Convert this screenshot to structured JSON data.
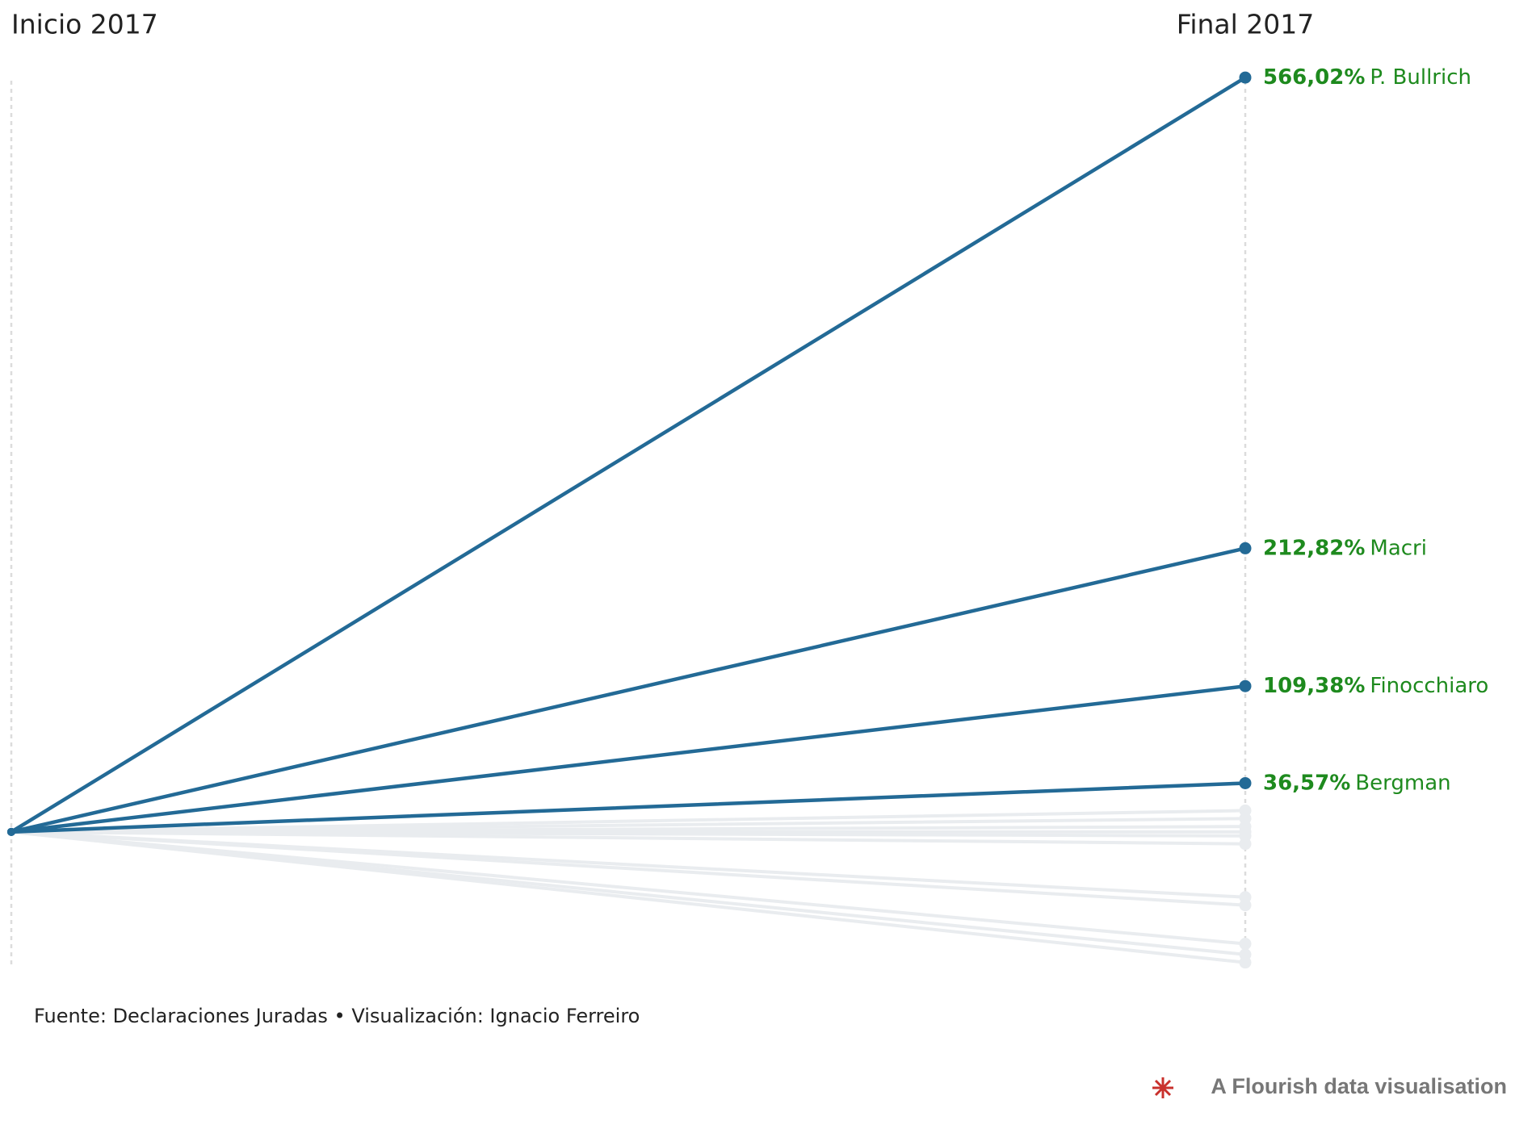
{
  "chart_data": {
    "type": "slope",
    "categories": [
      "Inicio 2017",
      "Final 2017"
    ],
    "ylim": [
      -120,
      600
    ],
    "label_color": "#1e8a1e",
    "series": [
      {
        "color": "#e9ecef",
        "values": [
          0,
          -98
        ]
      },
      {
        "color": "#e9ecef",
        "values": [
          0,
          -92
        ]
      },
      {
        "color": "#e9ecef",
        "values": [
          0,
          -84
        ]
      },
      {
        "color": "#e9ecef",
        "values": [
          0,
          -55
        ]
      },
      {
        "color": "#e9ecef",
        "values": [
          0,
          -49
        ]
      },
      {
        "color": "#e9ecef",
        "values": [
          0,
          -9
        ]
      },
      {
        "color": "#e9ecef",
        "values": [
          0,
          -3
        ]
      },
      {
        "color": "#e9ecef",
        "values": [
          0,
          0
        ]
      },
      {
        "color": "#e9ecef",
        "values": [
          0,
          4
        ]
      },
      {
        "color": "#e9ecef",
        "values": [
          0,
          10
        ]
      },
      {
        "color": "#e9ecef",
        "values": [
          0,
          16
        ]
      },
      {
        "name": "Bergman",
        "color": "#236a96",
        "values": [
          0,
          36.57
        ],
        "value_labels": [
          null,
          "36,57%"
        ]
      },
      {
        "name": "Finocchiaro",
        "color": "#236a96",
        "values": [
          0,
          109.38
        ],
        "value_labels": [
          null,
          "109,38%"
        ]
      },
      {
        "name": "Macri",
        "color": "#236a96",
        "values": [
          0,
          212.82
        ],
        "value_labels": [
          null,
          "212,82%"
        ]
      },
      {
        "name": "P. Bullrich",
        "color": "#236a96",
        "values": [
          0,
          566.02
        ],
        "value_labels": [
          null,
          "566,02%"
        ]
      }
    ],
    "source": "Fuente: Declaraciones Juradas • Visualización: Ignacio Ferreiro",
    "credit": "A Flourish data visualisation"
  }
}
